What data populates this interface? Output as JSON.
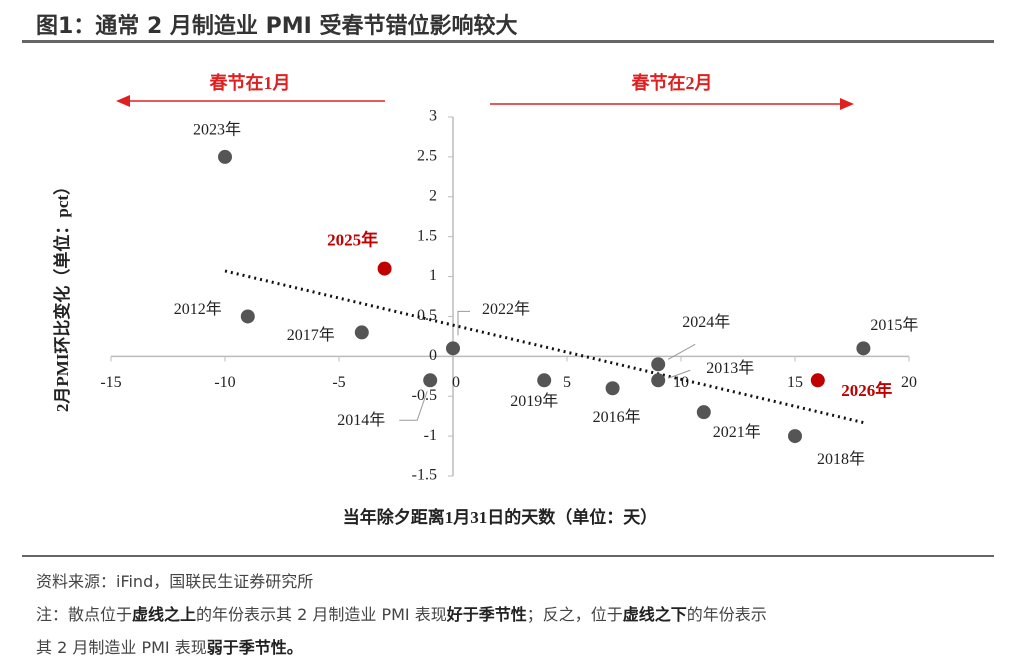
{
  "chart_data": {
    "type": "scatter",
    "title": "图1：通常 2 月制造业 PMI 受春节错位影响较大",
    "x_label": "当年除夕距离1月31日的天数（单位：天）",
    "y_label": "2月PMI环比变化（单位：pct）",
    "annotations": {
      "left": "春节在1月",
      "right": "春节在2月"
    },
    "annotation_color": "#e02020",
    "x": [
      -10,
      -3,
      -9,
      -4,
      0,
      -1,
      4,
      7,
      9,
      9,
      11,
      15,
      16,
      18
    ],
    "values": [
      2.5,
      1.1,
      0.5,
      0.3,
      0.1,
      -0.3,
      -0.3,
      -0.4,
      -0.1,
      -0.3,
      -0.7,
      -1.0,
      -0.3,
      0.1
    ],
    "labels": [
      "2023年",
      "2025年",
      "2012年",
      "2017年",
      "2022年",
      "2014年",
      "2019年",
      "2016年",
      "2024年",
      "2013年",
      "2021年",
      "2018年",
      "2026年",
      "2015年"
    ],
    "colors": [
      "#555555",
      "#c00000",
      "#555555",
      "#555555",
      "#555555",
      "#555555",
      "#555555",
      "#555555",
      "#555555",
      "#555555",
      "#555555",
      "#555555",
      "#c00000",
      "#555555"
    ],
    "trendline": {
      "x": [
        -10,
        18
      ],
      "values": [
        1.07,
        -0.83
      ]
    },
    "xlim": [
      -15,
      20
    ],
    "ylim": [
      -1.5,
      3
    ],
    "xticks": [
      -15,
      -10,
      -5,
      0,
      5,
      10,
      15,
      20
    ],
    "yticks": [
      -1.5,
      -1,
      -0.5,
      0,
      0.5,
      1,
      1.5,
      2,
      2.5,
      3
    ],
    "source": "资料来源：iFind，国联民生证券研究所",
    "note": [
      [
        {
          "text": "注：散点位于",
          "bold": false
        },
        {
          "text": "虚线之上",
          "bold": true
        },
        {
          "text": "的年份表示其 2 月制造业 PMI 表现",
          "bold": false
        },
        {
          "text": "好于季节性",
          "bold": true
        },
        {
          "text": "；反之，位于",
          "bold": false
        },
        {
          "text": "虚线之下",
          "bold": true
        },
        {
          "text": "的年份表示",
          "bold": false
        }
      ],
      [
        {
          "text": "其 2 月制造业 PMI 表现",
          "bold": false
        },
        {
          "text": "弱于季节性。",
          "bold": true
        }
      ]
    ]
  }
}
